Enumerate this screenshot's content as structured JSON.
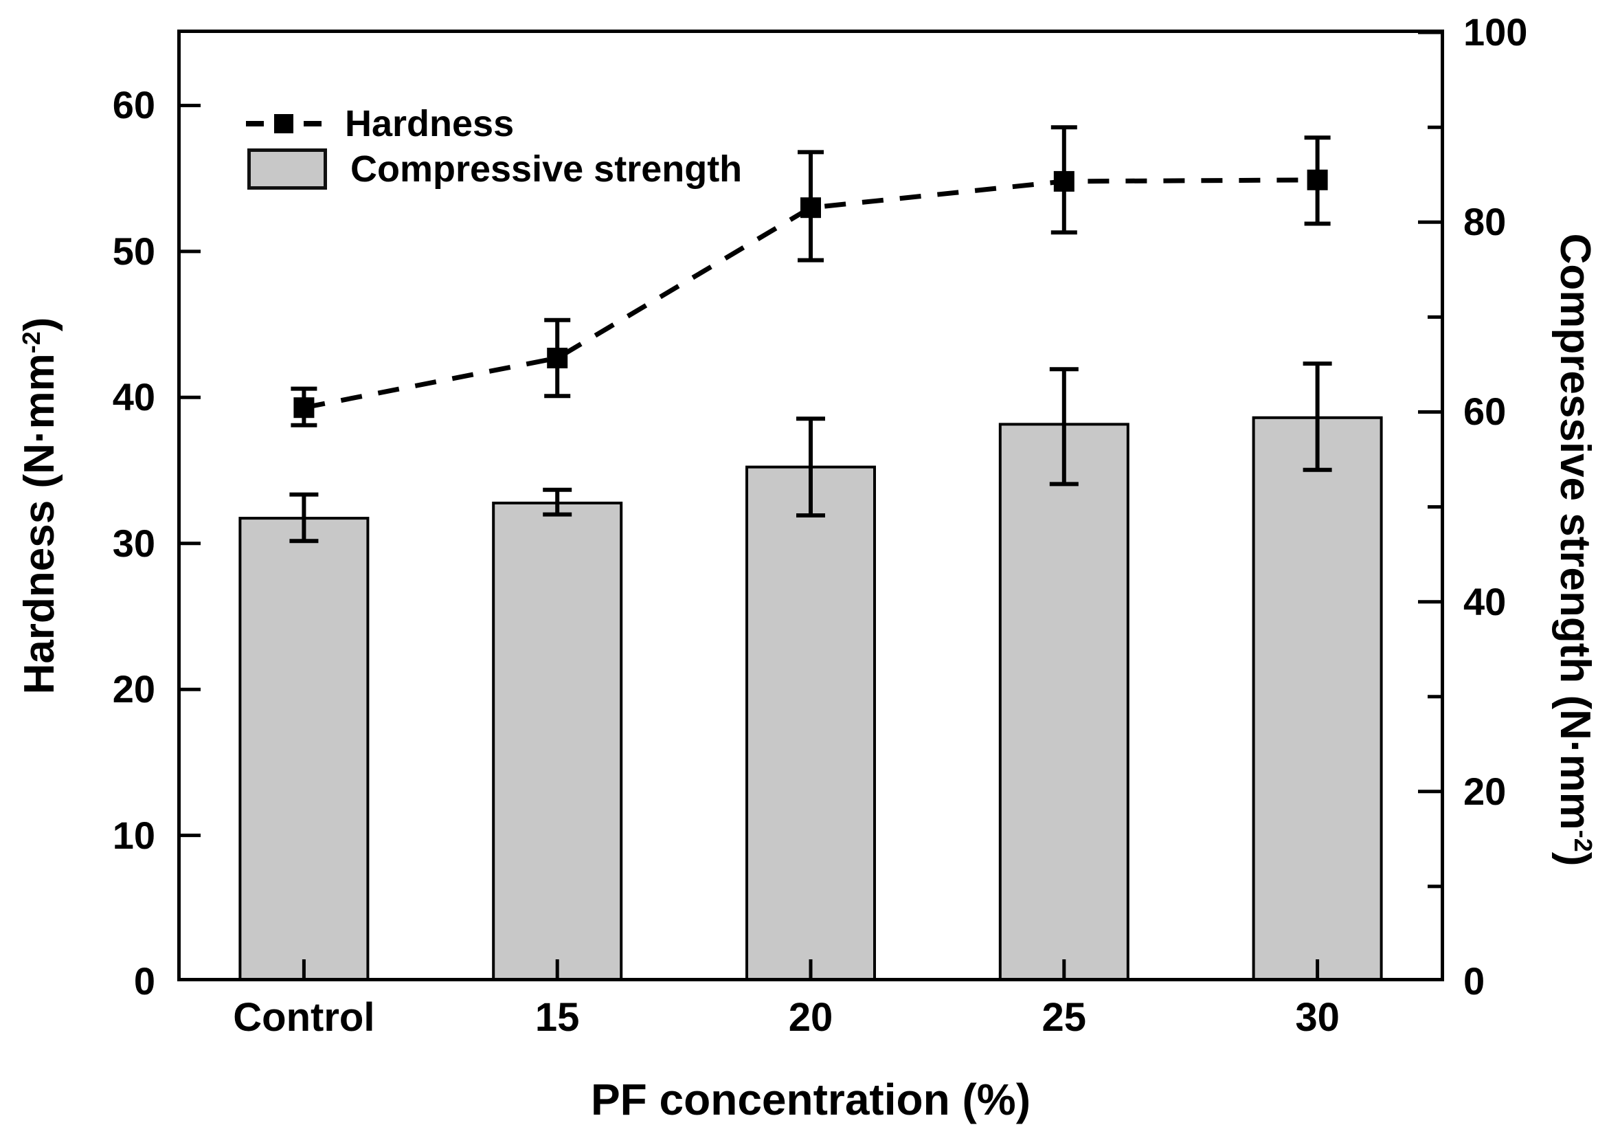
{
  "chart_data": {
    "type": "bar+line",
    "title": "",
    "categories": [
      "Control",
      "15",
      "20",
      "25",
      "30"
    ],
    "series": [
      {
        "name": "Hardness",
        "type": "line",
        "axis": "left",
        "line_style": "dashed",
        "marker": "filled-square",
        "color": "#000000",
        "values": [
          39.3,
          42.7,
          53.0,
          54.8,
          54.9
        ],
        "errors_plus": [
          1.3,
          2.6,
          3.8,
          3.7,
          2.9
        ],
        "errors_minus": [
          1.2,
          2.6,
          3.6,
          3.5,
          3.0
        ]
      },
      {
        "name": "Compressive strength",
        "type": "bar",
        "axis": "right",
        "color": "#c8c8c8",
        "border_color": "#000000",
        "values": [
          48.8,
          50.4,
          54.2,
          58.7,
          59.4
        ],
        "errors_plus": [
          2.5,
          1.4,
          5.1,
          5.8,
          5.7
        ],
        "errors_minus": [
          2.4,
          1.2,
          5.1,
          6.3,
          5.5
        ]
      }
    ],
    "left_axis": {
      "label": "Hardness (N·mm⁻²)",
      "label_parts": {
        "main": "Hardness (N·mm",
        "sup": "-2",
        "end": ")"
      },
      "range": [
        0,
        65.2
      ],
      "ticks": [
        0,
        10,
        20,
        30,
        40,
        50,
        60
      ]
    },
    "right_axis": {
      "label": "Compressive strength (N·mm⁻²)",
      "label_parts": {
        "main": "Compressive strength (N·mm",
        "sup": "-2",
        "end": ")"
      },
      "range": [
        0,
        100.3
      ],
      "ticks_major": [
        0,
        20,
        40,
        60,
        80,
        100
      ],
      "ticks_minor": [
        10,
        30,
        50,
        70,
        90
      ]
    },
    "xlabel": "PF concentration (%)",
    "legend_position": "top-left-inside",
    "grid": false,
    "background": "#ffffff"
  }
}
